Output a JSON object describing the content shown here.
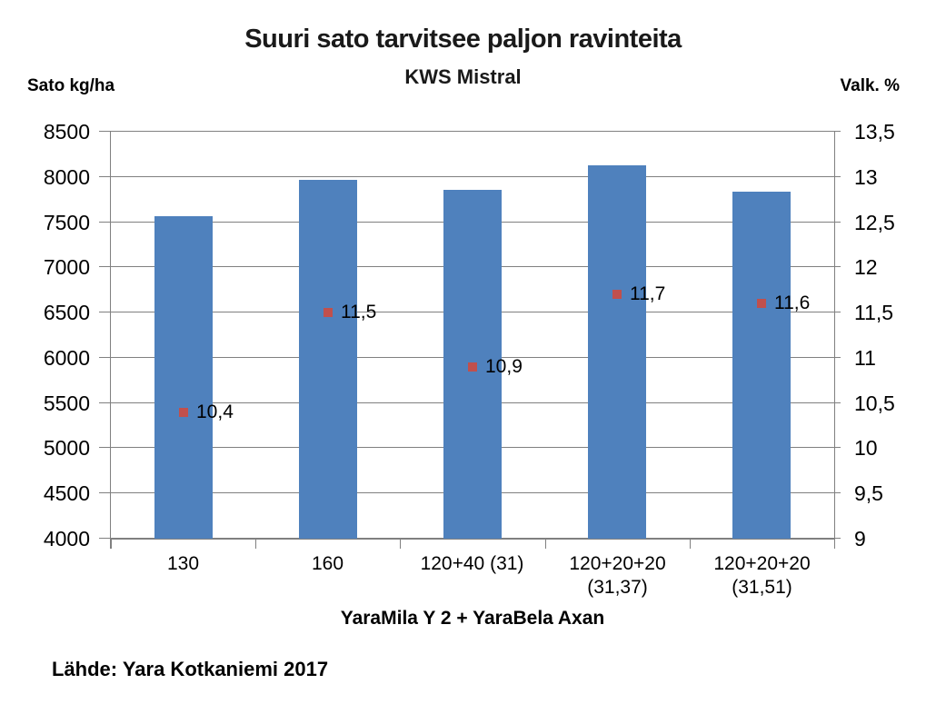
{
  "header": {
    "title": "Suuri sato tarvitsee paljon ravinteita",
    "subtitle": "KWS Mistral",
    "left_axis_title": "Sato kg/ha",
    "right_axis_title": "Valk. %"
  },
  "footer": {
    "source": "Lähde: Yara Kotkaniemi 2017"
  },
  "colors": {
    "bar": "#4F81BD",
    "marker": "#C0504D",
    "grid": "#808080",
    "axis": "#808080",
    "text": "#000000"
  },
  "chart_data": {
    "type": "bar",
    "title": "Suuri sato tarvitsee paljon ravinteita",
    "subtitle": "KWS Mistral",
    "x_axis_title": "YaraMila Y 2 + YaraBela Axan",
    "categories": [
      "130",
      "160",
      "120+40 (31)",
      "120+20+20 (31,37)",
      "120+20+20 (31,51)"
    ],
    "category_label_lines": [
      [
        "130"
      ],
      [
        "160"
      ],
      [
        "120+40 (31)"
      ],
      [
        "120+20+20",
        "(31,37)"
      ],
      [
        "120+20+20",
        "(31,51)"
      ]
    ],
    "series": [
      {
        "name": "Sato kg/ha",
        "type": "bar",
        "axis": "left",
        "values": [
          7570,
          7970,
          7855,
          8130,
          7840
        ]
      },
      {
        "name": "Valk. %",
        "type": "scatter",
        "axis": "right",
        "values": [
          10.4,
          11.5,
          10.9,
          11.7,
          11.6
        ],
        "labels": [
          "10,4",
          "11,5",
          "10,9",
          "11,7",
          "11,6"
        ]
      }
    ],
    "left_axis": {
      "label": "Sato kg/ha",
      "min": 4000,
      "max": 8500,
      "step": 500,
      "tick_labels": [
        "8500",
        "8000",
        "7500",
        "7000",
        "6500",
        "6000",
        "5500",
        "5000",
        "4500",
        "4000"
      ]
    },
    "right_axis": {
      "label": "Valk. %",
      "min": 9,
      "max": 13.5,
      "step": 0.5,
      "tick_labels": [
        "13,5",
        "13",
        "12,5",
        "12",
        "11,5",
        "11",
        "10,5",
        "10",
        "9,5",
        "9"
      ]
    },
    "grid": true,
    "legend_position": "none",
    "source": "Lähde: Yara Kotkaniemi 2017"
  }
}
